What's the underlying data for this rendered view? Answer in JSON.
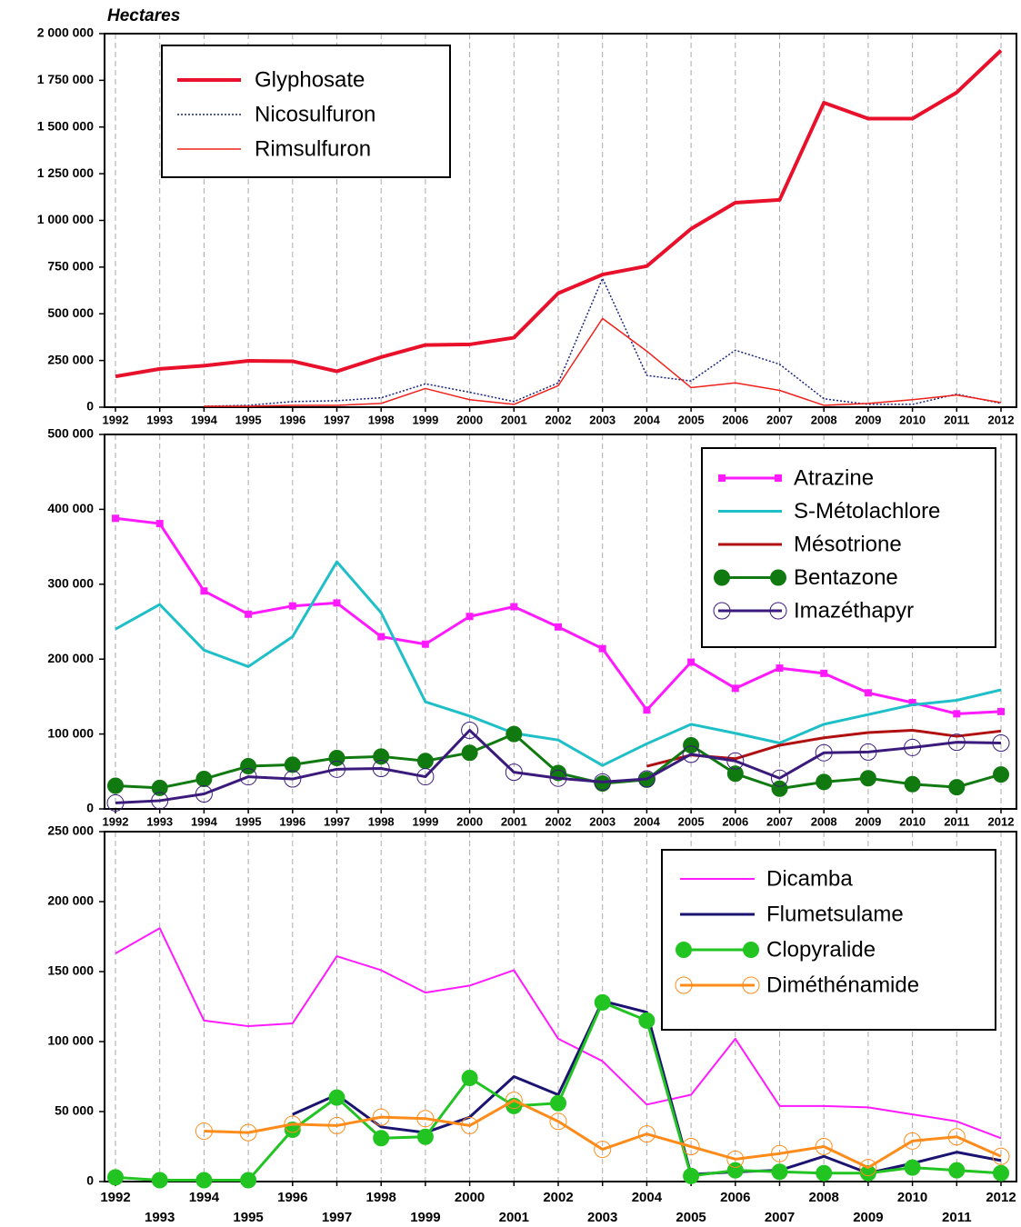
{
  "chart_data": [
    {
      "type": "line",
      "title": "Hectares",
      "categories": [
        "1992",
        "1993",
        "1994",
        "1995",
        "1996",
        "1997",
        "1998",
        "1999",
        "2000",
        "2001",
        "2002",
        "2003",
        "2004",
        "2005",
        "2006",
        "2007",
        "2008",
        "2009",
        "2010",
        "2011",
        "2012"
      ],
      "ylim": [
        0,
        2000000
      ],
      "yticks": [
        0,
        {
          "value": 250000,
          "label": "250 000"
        },
        {
          "value": 500000,
          "label": "500 000"
        },
        {
          "value": 750000,
          "label": "750 000"
        },
        {
          "value": 1000000,
          "label": "1 000 000"
        },
        {
          "value": 1250000,
          "label": "1 250 000"
        },
        {
          "value": 1500000,
          "label": "1 500 000"
        },
        {
          "value": 1750000,
          "label": "1 750 000"
        },
        {
          "value": 2000000,
          "label": "2 000 000"
        }
      ],
      "grid": true,
      "legend": "top-left",
      "series": [
        {
          "name": "Glyphosate",
          "color": "#e8102a",
          "linewidth": 4,
          "values": [
            165000,
            205000,
            222000,
            248000,
            246000,
            192000,
            268000,
            333000,
            336000,
            372000,
            610000,
            710000,
            755000,
            955000,
            1095000,
            1110000,
            1630000,
            1545000,
            1545000,
            1685000,
            1910000
          ]
        },
        {
          "name": "Nicosulfuron",
          "color": "#1a237e",
          "linewidth": 1.5,
          "linestyle": "dotted",
          "values": [
            null,
            null,
            5000,
            10000,
            30000,
            35000,
            50000,
            125000,
            80000,
            30000,
            130000,
            690000,
            170000,
            140000,
            305000,
            230000,
            45000,
            15000,
            15000,
            70000,
            20000
          ]
        },
        {
          "name": "Rimsulfuron",
          "color": "#f0201a",
          "linewidth": 1.5,
          "values": [
            null,
            null,
            5000,
            5000,
            10000,
            10000,
            20000,
            100000,
            40000,
            15000,
            115000,
            475000,
            300000,
            105000,
            130000,
            90000,
            10000,
            20000,
            40000,
            65000,
            25000
          ]
        }
      ]
    },
    {
      "type": "line",
      "categories": [
        "1992",
        "1993",
        "1994",
        "1995",
        "1996",
        "1997",
        "1998",
        "1999",
        "2000",
        "2001",
        "2002",
        "2003",
        "2004",
        "2005",
        "2006",
        "2007",
        "2008",
        "2009",
        "2010",
        "2011",
        "2012"
      ],
      "ylim": [
        0,
        500000
      ],
      "yticks": [
        0,
        {
          "value": 100000,
          "label": "100 000"
        },
        {
          "value": 200000,
          "label": "200 000"
        },
        {
          "value": 300000,
          "label": "300 000"
        },
        {
          "value": 400000,
          "label": "400 000"
        },
        {
          "value": 500000,
          "label": "500 000"
        }
      ],
      "grid": true,
      "legend": "top-right",
      "series": [
        {
          "name": "Atrazine",
          "color": "#ff1aff",
          "linewidth": 3,
          "marker": "square",
          "values": [
            388000,
            381000,
            291000,
            260000,
            271000,
            275000,
            230000,
            220000,
            257000,
            270000,
            243000,
            214000,
            132000,
            196000,
            161000,
            188000,
            181000,
            155000,
            142000,
            127000,
            130000
          ]
        },
        {
          "name": "S-Métolachlore",
          "color": "#1fbfc8",
          "linewidth": 3,
          "values": [
            240000,
            273000,
            212000,
            190000,
            230000,
            330000,
            262000,
            143000,
            124000,
            101000,
            92000,
            58000,
            87000,
            113000,
            101000,
            88000,
            113000,
            126000,
            139000,
            145000,
            159000
          ]
        },
        {
          "name": "Mésotrione",
          "color": "#b01010",
          "linewidth": 3,
          "values": [
            null,
            null,
            null,
            null,
            null,
            null,
            null,
            null,
            null,
            null,
            null,
            null,
            57000,
            72000,
            67000,
            85000,
            95000,
            102000,
            105000,
            97000,
            104000
          ]
        },
        {
          "name": "Bentazone",
          "color": "#107a10",
          "linewidth": 3,
          "marker": "circle-filled",
          "values": [
            31000,
            28000,
            40000,
            57000,
            59000,
            68000,
            70000,
            64000,
            75000,
            100000,
            48000,
            34000,
            39000,
            85000,
            47000,
            27000,
            36000,
            41000,
            33000,
            29000,
            46000
          ]
        },
        {
          "name": "Imazéthapyr",
          "color": "#3a1a7a",
          "linewidth": 3,
          "marker": "circle-open",
          "values": [
            8000,
            11000,
            20000,
            43000,
            40000,
            53000,
            54000,
            43000,
            105000,
            49000,
            41000,
            36000,
            40000,
            73000,
            64000,
            41000,
            75000,
            76000,
            82000,
            89000,
            88000
          ]
        }
      ]
    },
    {
      "type": "line",
      "categories": [
        "1992",
        "1993",
        "1994",
        "1995",
        "1996",
        "1997",
        "1998",
        "1999",
        "2000",
        "2001",
        "2002",
        "2003",
        "2004",
        "2005",
        "2006",
        "2007",
        "2008",
        "2009",
        "2010",
        "2011",
        "2012"
      ],
      "ylim": [
        0,
        250000
      ],
      "yticks": [
        0,
        {
          "value": 50000,
          "label": "50 000"
        },
        {
          "value": 100000,
          "label": "100 000"
        },
        {
          "value": 150000,
          "label": "150 000"
        },
        {
          "value": 200000,
          "label": "200 000"
        },
        {
          "value": 250000,
          "label": "250 000"
        }
      ],
      "grid": true,
      "legend": "top-right",
      "xtick_stagger": true,
      "series": [
        {
          "name": "Dicamba",
          "color": "#ff1aff",
          "linewidth": 2,
          "values": [
            163000,
            181000,
            115000,
            111000,
            113000,
            161000,
            151000,
            135000,
            140000,
            151000,
            102000,
            86000,
            55000,
            62000,
            102000,
            54000,
            54000,
            53000,
            48000,
            43000,
            31000
          ]
        },
        {
          "name": "Flumetsulame",
          "color": "#1a1470",
          "linewidth": 3,
          "values": [
            null,
            null,
            null,
            null,
            48000,
            62000,
            39000,
            35000,
            46000,
            75000,
            62000,
            129000,
            121000,
            5000,
            7000,
            8000,
            18000,
            6000,
            13000,
            21000,
            15000
          ]
        },
        {
          "name": "Clopyralide",
          "color": "#22c422",
          "linewidth": 3,
          "marker": "circle-filled",
          "values": [
            3000,
            1000,
            1000,
            1000,
            37000,
            60000,
            31000,
            32000,
            74000,
            54000,
            56000,
            128000,
            115000,
            4000,
            8000,
            7000,
            6000,
            6000,
            10000,
            8000,
            6000
          ]
        },
        {
          "name": "Diméthénamide",
          "color": "#ff8c1a",
          "linewidth": 3,
          "marker": "circle-open",
          "values": [
            null,
            null,
            36000,
            35000,
            41000,
            40000,
            46000,
            45000,
            40000,
            58000,
            43000,
            23000,
            34000,
            25000,
            16000,
            20000,
            25000,
            10000,
            29000,
            32000,
            18000
          ]
        }
      ]
    }
  ]
}
